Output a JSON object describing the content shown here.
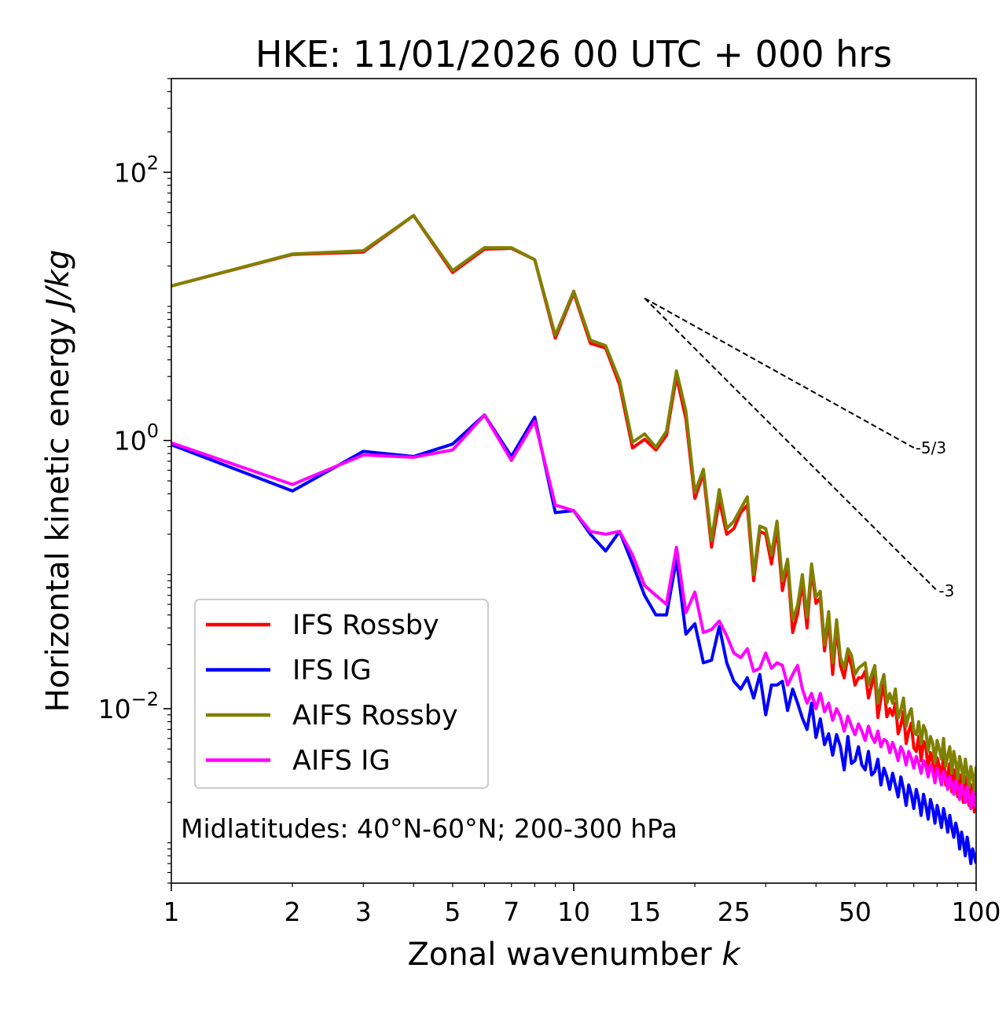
{
  "chart_data": {
    "type": "line",
    "title": "HKE: 11/01/2026 00 UTC + 000 hrs",
    "xlabel": "Zonal wavenumber",
    "xlabel_var": "k",
    "ylabel": "Horizontal kinetic energy",
    "ylabel_unit": "J/kg",
    "xscale": "log",
    "yscale": "log",
    "xlim": [
      1,
      100
    ],
    "ylim": [
      0.0005,
      500
    ],
    "x_ticks": [
      {
        "value": 1,
        "label": "1"
      },
      {
        "value": 2,
        "label": "2"
      },
      {
        "value": 3,
        "label": "3"
      },
      {
        "value": 5,
        "label": "5"
      },
      {
        "value": 7,
        "label": "7"
      },
      {
        "value": 10,
        "label": "10"
      },
      {
        "value": 15,
        "label": "15"
      },
      {
        "value": 25,
        "label": "25"
      },
      {
        "value": 50,
        "label": "50"
      },
      {
        "value": 100,
        "label": "100"
      }
    ],
    "y_ticks": [
      {
        "value": 100,
        "base": "10",
        "exp": "2"
      },
      {
        "value": 1,
        "base": "10",
        "exp": "0"
      },
      {
        "value": 0.01,
        "base": "10",
        "exp": "−2"
      }
    ],
    "annotation": "Midlatitudes: 40°N-60°N; 200-300 hPa",
    "legend_position": "lower-left",
    "reference_lines": [
      {
        "label": "-5/3",
        "slope": -1.6667,
        "x": [
          15,
          70
        ],
        "y0": 11.5
      },
      {
        "label": "-3",
        "slope": -3,
        "x": [
          15,
          80
        ],
        "y0": 11.5
      }
    ],
    "x": [
      1,
      2,
      3,
      4,
      5,
      6,
      7,
      8,
      9,
      10,
      11,
      12,
      13,
      14,
      15,
      16,
      17,
      18,
      19,
      20,
      21,
      22,
      23,
      24,
      25,
      26,
      27,
      28,
      29,
      30,
      31,
      32,
      33,
      34,
      35,
      36,
      37,
      38,
      39,
      40,
      41,
      42,
      43,
      44,
      45,
      46,
      47,
      48,
      49,
      50,
      51,
      52,
      53,
      54,
      55,
      56,
      57,
      58,
      59,
      60,
      61,
      62,
      63,
      64,
      65,
      66,
      67,
      68,
      69,
      70,
      71,
      72,
      73,
      74,
      75,
      76,
      77,
      78,
      79,
      80,
      81,
      82,
      83,
      84,
      85,
      86,
      87,
      88,
      89,
      90,
      91,
      92,
      93,
      94,
      95,
      96,
      97,
      98,
      99,
      100
    ],
    "series": [
      {
        "name": "IFS Rossby",
        "color": "#ff0000",
        "values": [
          14.2,
          24.4,
          25.4,
          47.6,
          17.9,
          26.7,
          27.1,
          22.3,
          5.8,
          12.6,
          5.3,
          4.9,
          2.6,
          0.88,
          1.02,
          0.85,
          1.09,
          3.0,
          1.45,
          0.37,
          0.57,
          0.16,
          0.36,
          0.2,
          0.22,
          0.29,
          0.33,
          0.09,
          0.21,
          0.2,
          0.12,
          0.22,
          0.076,
          0.12,
          0.037,
          0.051,
          0.087,
          0.04,
          0.11,
          0.061,
          0.067,
          0.027,
          0.047,
          0.018,
          0.041,
          0.021,
          0.017,
          0.025,
          0.021,
          0.015,
          0.017,
          0.017,
          0.019,
          0.012,
          0.015,
          0.018,
          0.0086,
          0.012,
          0.015,
          0.0087,
          0.01,
          0.0089,
          0.011,
          0.0065,
          0.0075,
          0.0095,
          0.0055,
          0.0068,
          0.0078,
          0.0051,
          0.0048,
          0.0062,
          0.0041,
          0.0057,
          0.0052,
          0.0035,
          0.0047,
          0.0041,
          0.0029,
          0.0043,
          0.0037,
          0.0031,
          0.0045,
          0.0027,
          0.0033,
          0.0039,
          0.0024,
          0.0035,
          0.0029,
          0.0022,
          0.0032,
          0.0027,
          0.002,
          0.0031,
          0.0025,
          0.0019,
          0.0027,
          0.0023,
          0.0017,
          0.0027
        ]
      },
      {
        "name": "IFS IG",
        "color": "#0000ff",
        "values": [
          0.93,
          0.42,
          0.83,
          0.76,
          0.94,
          1.55,
          0.76,
          1.49,
          0.29,
          0.3,
          0.2,
          0.15,
          0.21,
          0.12,
          0.07,
          0.05,
          0.05,
          0.13,
          0.036,
          0.043,
          0.022,
          0.023,
          0.041,
          0.022,
          0.016,
          0.014,
          0.017,
          0.012,
          0.018,
          0.009,
          0.015,
          0.015,
          0.016,
          0.0097,
          0.014,
          0.011,
          0.0085,
          0.007,
          0.011,
          0.0061,
          0.0084,
          0.0054,
          0.0065,
          0.0045,
          0.0064,
          0.0052,
          0.0035,
          0.0062,
          0.0039,
          0.0041,
          0.0052,
          0.0038,
          0.0035,
          0.0048,
          0.0032,
          0.0034,
          0.0042,
          0.0027,
          0.0036,
          0.0031,
          0.0025,
          0.0033,
          0.0027,
          0.0022,
          0.0031,
          0.0025,
          0.0019,
          0.0027,
          0.0023,
          0.0018,
          0.0025,
          0.0021,
          0.0016,
          0.0023,
          0.0019,
          0.0015,
          0.0021,
          0.0018,
          0.0014,
          0.0019,
          0.0016,
          0.0013,
          0.0018,
          0.0015,
          0.0012,
          0.0016,
          0.0013,
          0.0011,
          0.0014,
          0.0012,
          0.0009,
          0.0012,
          0.001,
          0.0008,
          0.0011,
          0.0009,
          0.0007,
          0.0009,
          0.0008,
          0.0007
        ]
      },
      {
        "name": "AIFS Rossby",
        "color": "#808000",
        "values": [
          14.2,
          24.6,
          26.0,
          47.6,
          18.5,
          27.4,
          27.4,
          22.3,
          6.1,
          13.0,
          5.6,
          5.1,
          2.8,
          0.97,
          1.12,
          0.89,
          1.17,
          3.3,
          1.65,
          0.41,
          0.61,
          0.18,
          0.43,
          0.22,
          0.25,
          0.31,
          0.38,
          0.1,
          0.23,
          0.22,
          0.14,
          0.25,
          0.09,
          0.13,
          0.046,
          0.059,
          0.1,
          0.048,
          0.12,
          0.068,
          0.075,
          0.03,
          0.053,
          0.022,
          0.046,
          0.024,
          0.02,
          0.028,
          0.025,
          0.018,
          0.02,
          0.021,
          0.022,
          0.015,
          0.018,
          0.021,
          0.011,
          0.015,
          0.018,
          0.011,
          0.013,
          0.011,
          0.014,
          0.0085,
          0.0098,
          0.012,
          0.0074,
          0.009,
          0.01,
          0.0068,
          0.0064,
          0.008,
          0.0055,
          0.0075,
          0.0068,
          0.0048,
          0.0062,
          0.0055,
          0.004,
          0.0058,
          0.005,
          0.0042,
          0.006,
          0.0037,
          0.0045,
          0.0052,
          0.0033,
          0.0048,
          0.004,
          0.003,
          0.0044,
          0.0037,
          0.0028,
          0.0042,
          0.0034,
          0.0026,
          0.0037,
          0.0032,
          0.0024,
          0.0037
        ]
      },
      {
        "name": "AIFS IG",
        "color": "#ff00ff",
        "values": [
          0.96,
          0.47,
          0.78,
          0.75,
          0.85,
          1.55,
          0.71,
          1.39,
          0.33,
          0.3,
          0.21,
          0.2,
          0.21,
          0.14,
          0.083,
          0.07,
          0.06,
          0.16,
          0.052,
          0.074,
          0.037,
          0.039,
          0.045,
          0.035,
          0.026,
          0.024,
          0.028,
          0.019,
          0.02,
          0.026,
          0.02,
          0.022,
          0.021,
          0.015,
          0.018,
          0.021,
          0.014,
          0.011,
          0.013,
          0.01,
          0.013,
          0.0095,
          0.011,
          0.0082,
          0.01,
          0.0087,
          0.0068,
          0.0088,
          0.0074,
          0.0064,
          0.0077,
          0.0068,
          0.0058,
          0.0074,
          0.0062,
          0.0056,
          0.0068,
          0.0052,
          0.0059,
          0.0057,
          0.0047,
          0.0056,
          0.0049,
          0.0041,
          0.0052,
          0.0047,
          0.0038,
          0.0048,
          0.0043,
          0.0036,
          0.0044,
          0.0039,
          0.0033,
          0.0041,
          0.0037,
          0.0031,
          0.0038,
          0.0034,
          0.0028,
          0.0036,
          0.0032,
          0.0027,
          0.0034,
          0.003,
          0.0025,
          0.0031,
          0.0027,
          0.0023,
          0.0029,
          0.0026,
          0.0021,
          0.0027,
          0.0024,
          0.002,
          0.0026,
          0.0022,
          0.0018,
          0.0024,
          0.0021,
          0.0018
        ]
      }
    ]
  }
}
